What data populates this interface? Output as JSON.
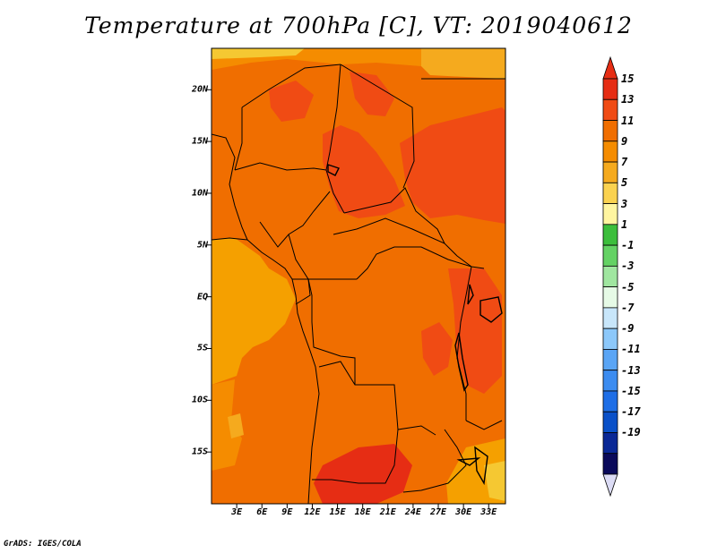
{
  "title": "Temperature at 700hPa [C], VT: 2019040612",
  "credit": "GrADS: IGES/COLA",
  "colors": {
    "ocean_warm": "#f5a000",
    "land_base": "#f06e00",
    "warm_core": "#f04b14",
    "hot": "#e62d14",
    "cool_edge": "#f5c832",
    "border": "#000000"
  },
  "map": {
    "y_axis": {
      "labels": [
        "20N",
        "15N",
        "10N",
        "5N",
        "EQ",
        "5S",
        "10S",
        "15S"
      ],
      "values": [
        20,
        15,
        10,
        5,
        0,
        -5,
        -10,
        -15
      ]
    },
    "x_axis": {
      "labels": [
        "3E",
        "6E",
        "9E",
        "12E",
        "15E",
        "18E",
        "21E",
        "24E",
        "27E",
        "30E",
        "33E"
      ],
      "values": [
        3,
        6,
        9,
        12,
        15,
        18,
        21,
        24,
        27,
        30,
        33
      ]
    }
  },
  "colorbar": {
    "labels": [
      "15",
      "13",
      "11",
      "9",
      "7",
      "5",
      "3",
      "1",
      "-1",
      "-3",
      "-5",
      "-7",
      "-9",
      "-11",
      "-13",
      "-15",
      "-17",
      "-19"
    ],
    "colors": [
      "#e62d14",
      "#f04b14",
      "#f06e00",
      "#f58c00",
      "#f5aa1e",
      "#fad250",
      "#fff5a0",
      "#3cbe3c",
      "#64d264",
      "#a0e6a0",
      "#e6fae6",
      "#c8e6fa",
      "#8cc8fa",
      "#5aa5f5",
      "#3c8cf0",
      "#1e6ee6",
      "#0a50c8",
      "#0a2896",
      "#0a0a5a"
    ],
    "top_arrow_color": "#e62d14",
    "bottom_arrow_color": "#dcdcf5"
  }
}
